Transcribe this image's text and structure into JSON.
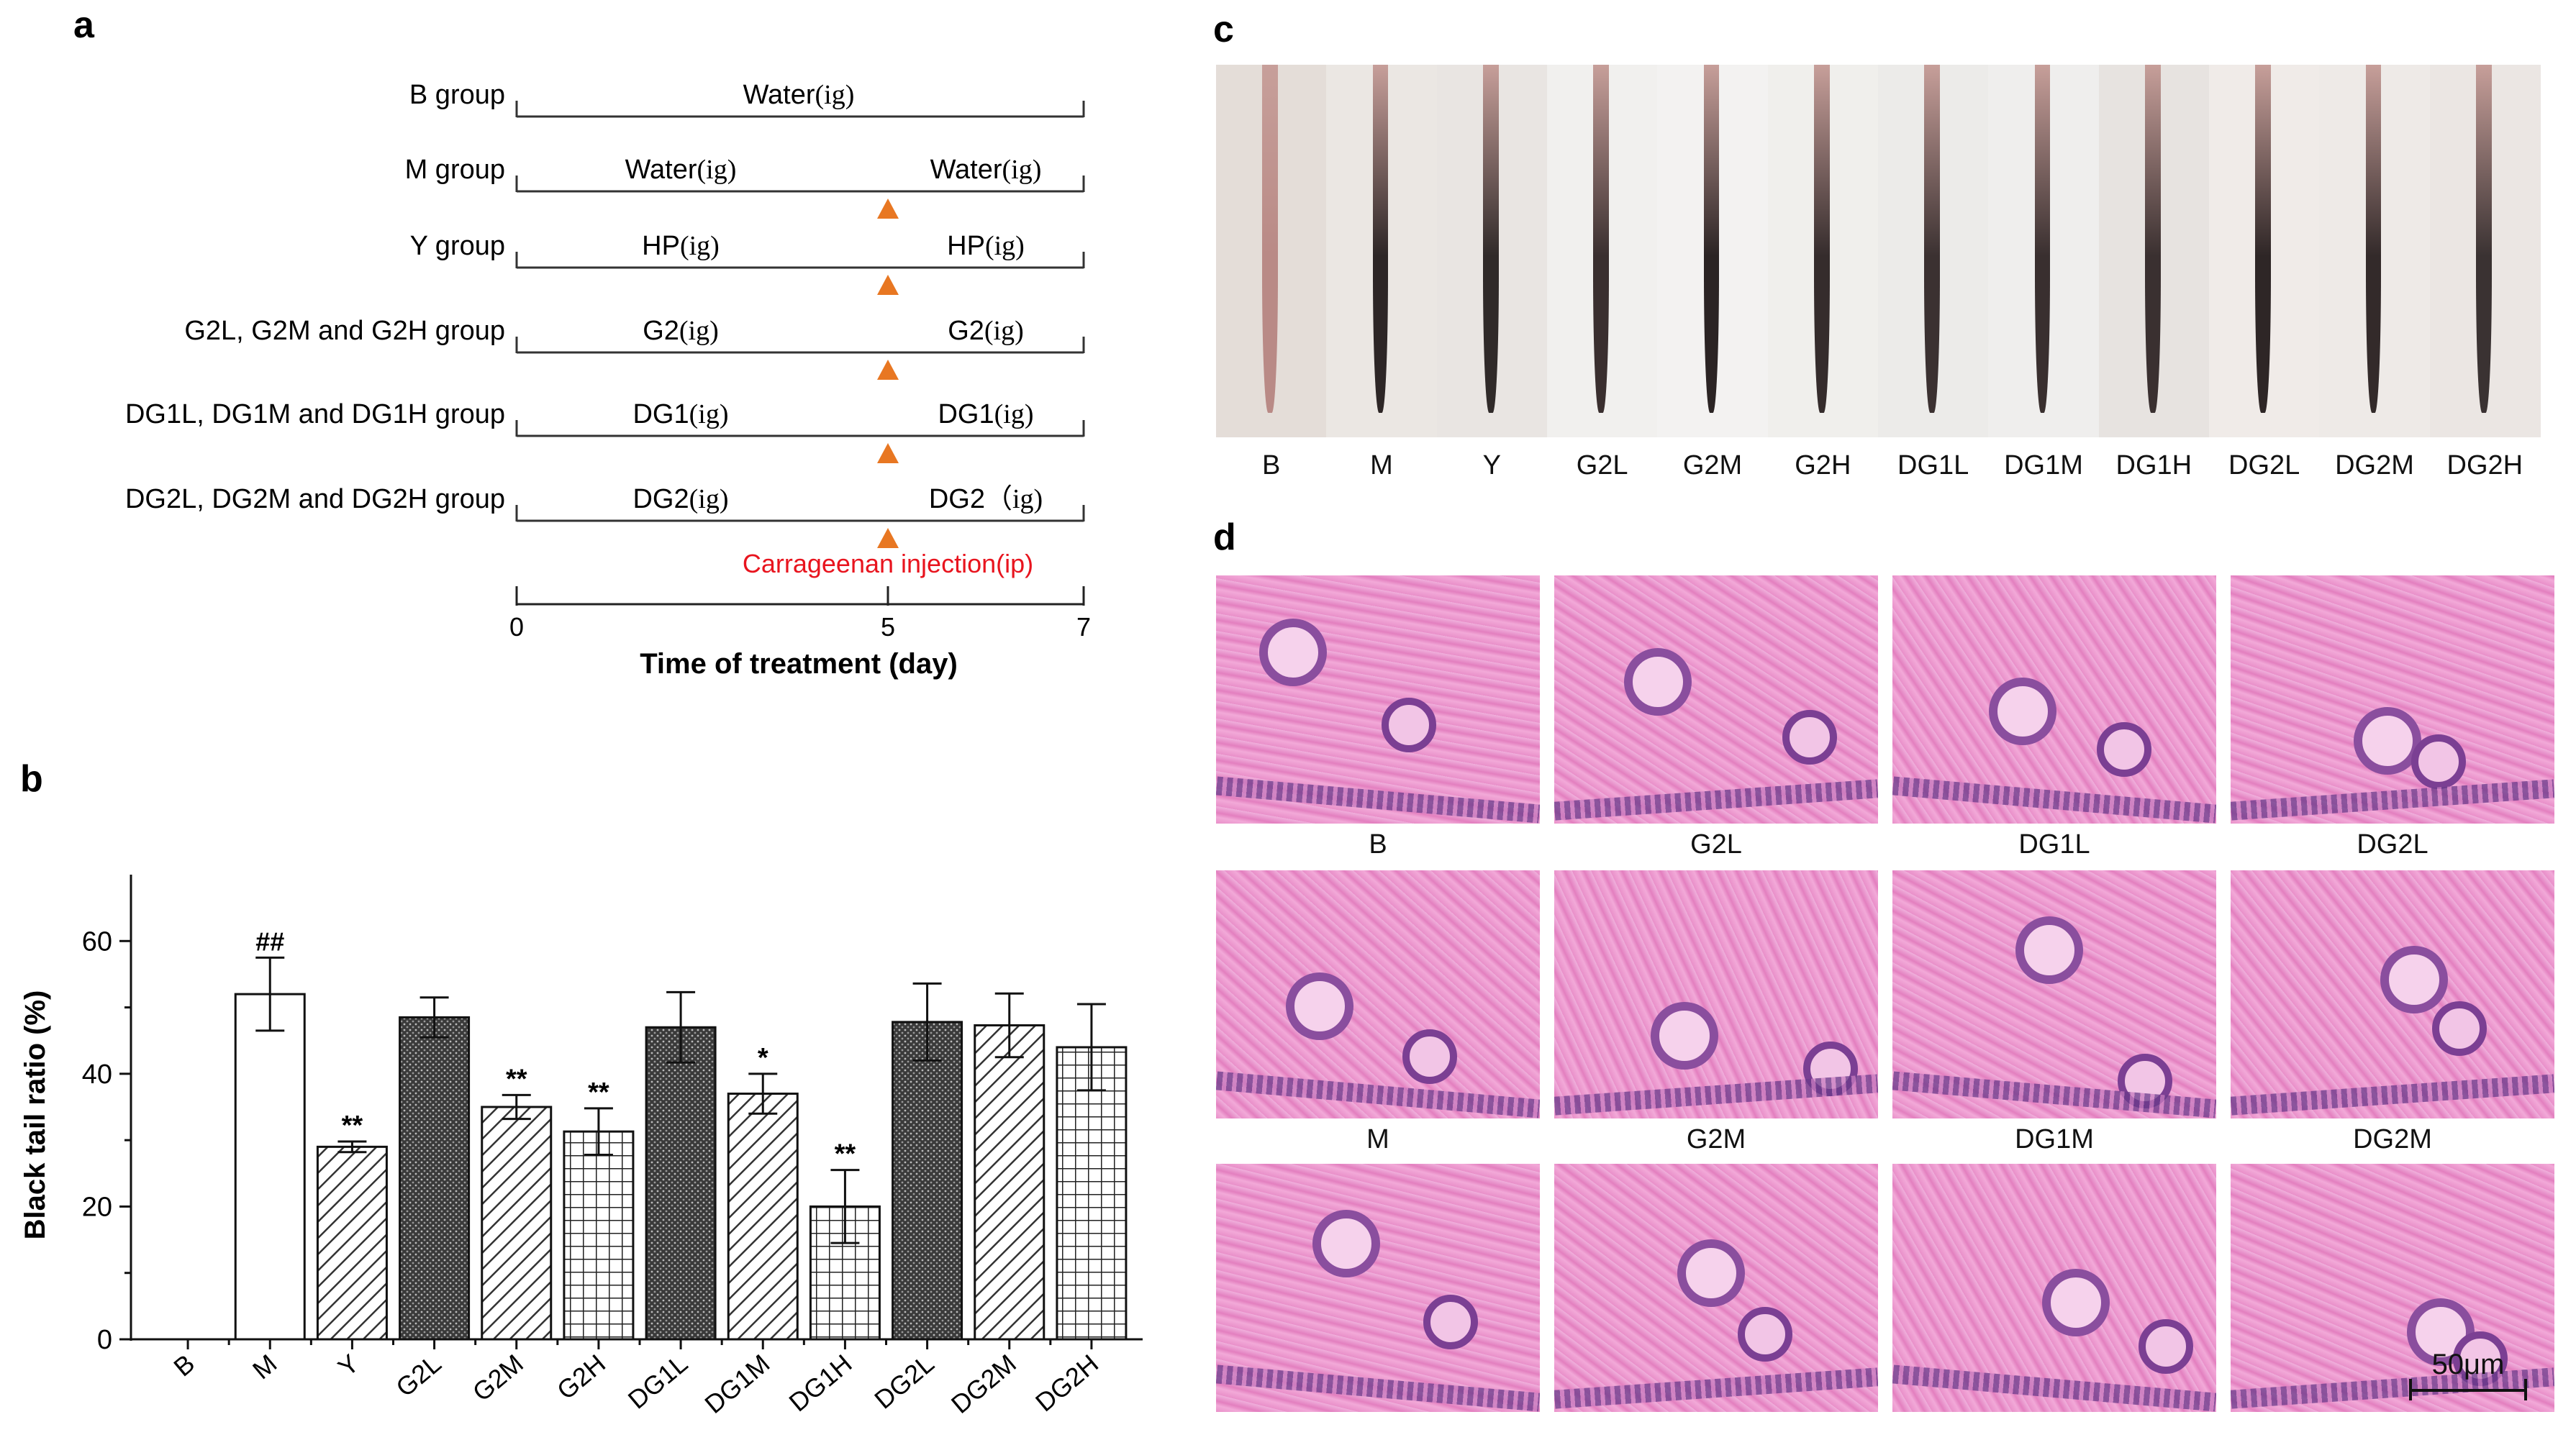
{
  "panels": {
    "a": "a",
    "b": "b",
    "c": "c",
    "d": "d"
  },
  "timeline": {
    "rows": [
      {
        "group": "B group",
        "before": "Water",
        "after": "",
        "route_before": "(ig)",
        "route_after": "",
        "full": true
      },
      {
        "group": "M group",
        "before": "Water",
        "after": "Water",
        "route_before": "(ig)",
        "route_after": "(ig)",
        "full": false
      },
      {
        "group": "Y group",
        "before": "HP",
        "after": "HP",
        "route_before": "(ig)",
        "route_after": "(ig)",
        "full": false
      },
      {
        "group": "G2L, G2M and G2H group",
        "before": "G2",
        "after": "G2",
        "route_before": "(ig)",
        "route_after": "(ig)",
        "full": false
      },
      {
        "group": "DG1L, DG1M and DG1H group",
        "before": "DG1",
        "after": "DG1",
        "route_before": "(ig)",
        "route_after": "(ig)",
        "full": false
      },
      {
        "group": "DG2L, DG2M and DG2H group",
        "before": "DG2",
        "after": "DG2",
        "route_before": "(ig)",
        "route_after": "（ig)",
        "full": false
      }
    ],
    "injection_label": "Carrageenan injection(ip)",
    "ticks": [
      "0",
      "5",
      "7"
    ],
    "xlabel": "Time of treatment (day)",
    "marker_color": "#E87722",
    "injection_color": "#E8141E"
  },
  "chart_data": {
    "type": "bar",
    "categories": [
      "B",
      "M",
      "Y",
      "G2L",
      "G2M",
      "G2H",
      "DG1L",
      "DG1M",
      "DG1H",
      "DG2L",
      "DG2M",
      "DG2H"
    ],
    "values": [
      0,
      52,
      29,
      48.5,
      35,
      31.3,
      47,
      37,
      20,
      47.8,
      47.3,
      44
    ],
    "errors": [
      0,
      5.5,
      0.8,
      3,
      1.8,
      3.5,
      5.3,
      3,
      5.5,
      5.8,
      4.8,
      6.5
    ],
    "annotations": [
      "",
      "##",
      "**",
      "",
      "**",
      "**",
      "",
      "*",
      "**",
      "",
      "",
      ""
    ],
    "patterns": [
      "none",
      "white",
      "hatch",
      "dots",
      "hatch",
      "grid",
      "dots",
      "hatch",
      "grid",
      "dots",
      "hatch",
      "grid"
    ],
    "ylabel": "Black tail ratio (%)",
    "ylim": [
      0,
      70
    ],
    "yticks": [
      "0",
      "20",
      "40",
      "60"
    ]
  },
  "tail_photos": {
    "labels": [
      "B",
      "M",
      "Y",
      "G2L",
      "G2M",
      "G2H",
      "DG1L",
      "DG1M",
      "DG1H",
      "DG2L",
      "DG2M",
      "DG2H"
    ]
  },
  "histology": {
    "row_labels": [
      [
        "B",
        "G2L",
        "DG1L",
        "DG2L"
      ],
      [
        "M",
        "G2M",
        "DG1M",
        "DG2M"
      ]
    ],
    "scale_bar": "50μm"
  }
}
